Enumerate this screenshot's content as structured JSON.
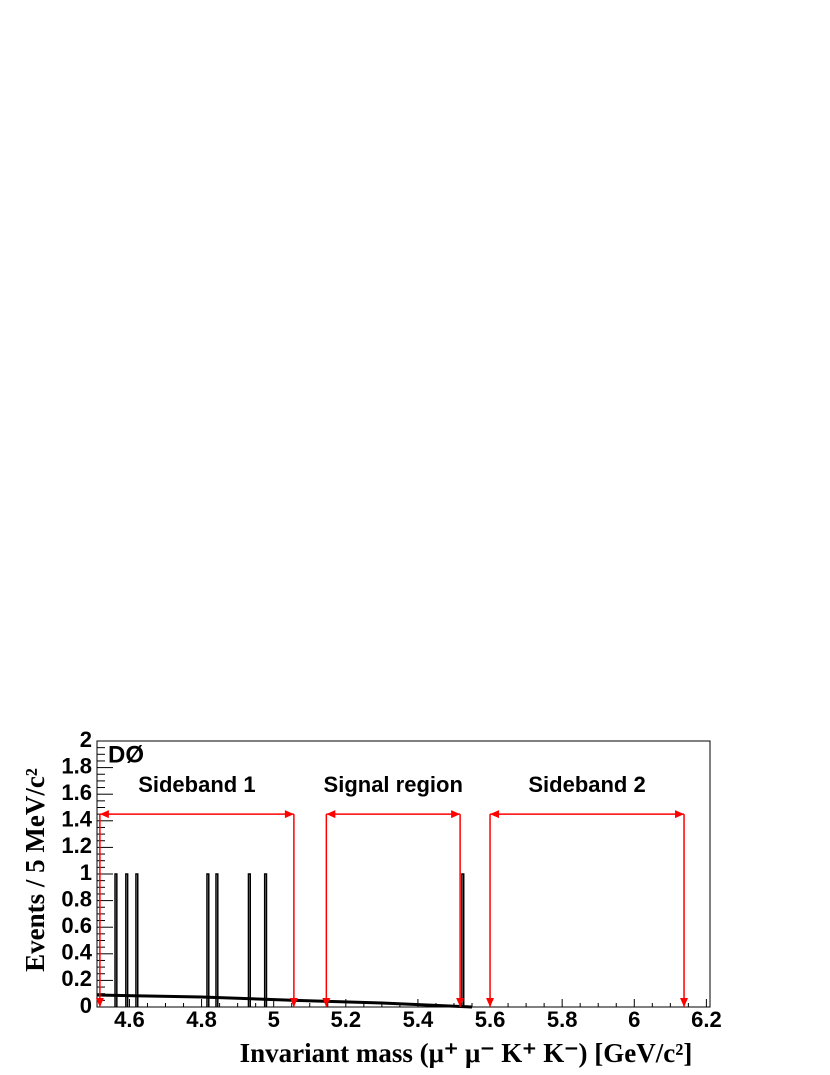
{
  "chart_data": {
    "type": "bar",
    "annotation": "DØ",
    "x_label": "Invariant mass (μ⁺ μ⁻ K⁺ K⁻) [GeV/c²]",
    "y_label": "Events / 5 MeV/c²",
    "x": [
      4.56,
      4.59,
      4.618,
      4.815,
      4.84,
      4.93,
      4.975,
      5.522
    ],
    "values": [
      1,
      1,
      1,
      1,
      1,
      1,
      1,
      1
    ],
    "bin_width": 0.005,
    "color": "#000000",
    "fit": {
      "x": [
        4.51,
        4.8,
        5.06,
        5.3,
        5.55
      ],
      "values": [
        0.09,
        0.075,
        0.05,
        0.03,
        0
      ],
      "color": "#000000"
    },
    "regions": [
      {
        "label": "Sideband 1",
        "range": [
          4.518,
          5.056
        ]
      },
      {
        "label": "Signal region",
        "range": [
          5.146,
          5.517
        ]
      },
      {
        "label": "Sideband 2",
        "range": [
          5.6,
          6.138
        ]
      }
    ],
    "region_y": 1.45,
    "region_color": "#ff0000",
    "xlim": [
      4.51,
      6.21
    ],
    "xticks": [
      4.6,
      4.8,
      5,
      5.2,
      5.4,
      5.6,
      5.8,
      6,
      6.2
    ],
    "ylim": [
      0,
      2
    ],
    "yticks": [
      0,
      0.2,
      0.4,
      0.6,
      0.8,
      1,
      1.2,
      1.4,
      1.6,
      1.8,
      2
    ]
  }
}
